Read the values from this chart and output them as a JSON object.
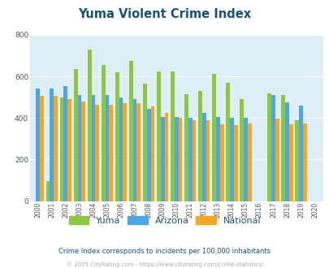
{
  "title": "Yuma Violent Crime Index",
  "years": [
    2000,
    2001,
    2002,
    2003,
    2004,
    2005,
    2006,
    2007,
    2008,
    2009,
    2010,
    2011,
    2012,
    2013,
    2014,
    2015,
    2016,
    2017,
    2018,
    2019,
    2020
  ],
  "yuma": [
    0,
    95,
    500,
    635,
    730,
    655,
    620,
    675,
    565,
    625,
    625,
    515,
    530,
    610,
    570,
    490,
    0,
    520,
    510,
    390,
    0
  ],
  "arizona": [
    540,
    540,
    555,
    510,
    510,
    510,
    500,
    490,
    445,
    405,
    405,
    400,
    425,
    405,
    400,
    400,
    0,
    510,
    475,
    460,
    0
  ],
  "national": [
    505,
    505,
    490,
    480,
    465,
    465,
    470,
    470,
    455,
    425,
    400,
    390,
    390,
    370,
    365,
    375,
    0,
    395,
    370,
    375,
    0
  ],
  "yuma_color": "#8dc63f",
  "arizona_color": "#4da6e8",
  "national_color": "#f5a623",
  "bg_color": "#ddeef6",
  "ylim": [
    0,
    800
  ],
  "yticks": [
    0,
    200,
    400,
    600,
    800
  ],
  "footnote1": "Crime Index corresponds to incidents per 100,000 inhabitants",
  "footnote2": "© 2025 CityRating.com - https://www.cityrating.com/crime-statistics/",
  "grid_color": "#ffffff",
  "title_color": "#1a5276",
  "legend_text_color": "#1a5276",
  "footnote1_color": "#1a5276",
  "footnote2_color": "#aaaaaa"
}
